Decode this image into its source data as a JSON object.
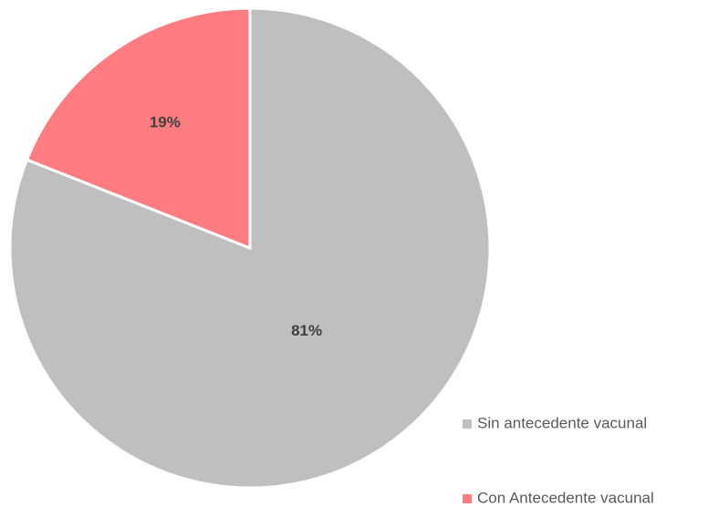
{
  "chart_data": {
    "type": "pie",
    "categories": [
      "Sin antecedente vacunal",
      "Con Antecedente vacunal"
    ],
    "values": [
      81,
      19
    ],
    "value_labels": [
      "81%",
      "19%"
    ],
    "colors": [
      "#bfbfbf",
      "#ff7c80"
    ]
  }
}
